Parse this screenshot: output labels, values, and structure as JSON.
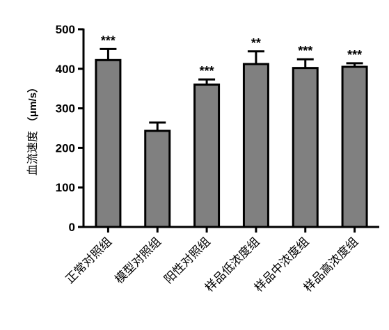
{
  "chart_data": {
    "type": "bar",
    "title": "",
    "xlabel": "",
    "ylabel": "血流速度",
    "ylabel_unit": "（μm/s）",
    "ylim": [
      0,
      500
    ],
    "yticks": [
      0,
      100,
      200,
      300,
      400,
      500
    ],
    "ytick_labels": [
      "0",
      "100",
      "200",
      "300",
      "400",
      "500"
    ],
    "categories": [
      "正常对照组",
      "模型对照组",
      "阳性对照组",
      "样品低浓度组",
      "样品中浓度组",
      "样品高浓度组"
    ],
    "values": [
      422,
      243,
      360,
      412,
      402,
      405
    ],
    "errors": [
      28,
      21,
      13,
      32,
      22,
      9
    ],
    "significance": [
      "***",
      "",
      "***",
      "**",
      "***",
      "***"
    ],
    "bar_color": "#808080",
    "grid": false,
    "legend": "none"
  }
}
